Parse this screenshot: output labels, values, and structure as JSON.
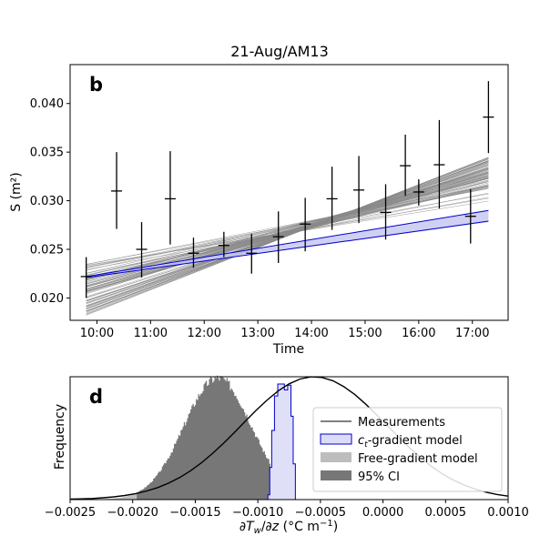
{
  "figure_title": "21-Aug/AM13",
  "chart_data": [
    {
      "panel_label": "b",
      "type": "scatter",
      "title": "21-Aug/AM13",
      "xlabel": "Time",
      "ylabel": "S (m²)",
      "xlim": [
        "09:30",
        "17:40"
      ],
      "ylim": [
        0.0177,
        0.044
      ],
      "x_ticks": [
        "10:00",
        "11:00",
        "12:00",
        "13:00",
        "14:00",
        "15:00",
        "16:00",
        "17:00"
      ],
      "y_ticks": [
        "0.020",
        "0.025",
        "0.030",
        "0.035",
        "0.040"
      ],
      "grid": false,
      "legend": "none",
      "measurements": {
        "x": [
          "09:48",
          "10:22",
          "10:50",
          "11:22",
          "11:48",
          "12:22",
          "12:53",
          "13:23",
          "13:53",
          "14:23",
          "14:53",
          "15:23",
          "15:45",
          "16:00",
          "16:23",
          "16:58",
          "17:18"
        ],
        "y": [
          0.0222,
          0.031,
          0.025,
          0.0302,
          0.0246,
          0.0254,
          0.0246,
          0.0263,
          0.0276,
          0.0302,
          0.0311,
          0.0288,
          0.0336,
          0.0309,
          0.0337,
          0.0284,
          0.0386
        ],
        "y_low": [
          0.02,
          0.0271,
          0.0221,
          0.0255,
          0.0231,
          0.0242,
          0.0225,
          0.0236,
          0.0248,
          0.027,
          0.0277,
          0.026,
          0.0305,
          0.0295,
          0.0292,
          0.0256,
          0.0349
        ],
        "y_high": [
          0.0242,
          0.035,
          0.0278,
          0.0351,
          0.0262,
          0.0268,
          0.0266,
          0.0289,
          0.0303,
          0.0335,
          0.0346,
          0.0317,
          0.0368,
          0.0322,
          0.0383,
          0.0312,
          0.0423
        ]
      },
      "ensemble": {
        "start_x": "09:48",
        "end_x": "17:18",
        "count": 90,
        "start_range": [
          0.0182,
          0.0237
        ],
        "end_range": [
          0.0296,
          0.0345
        ]
      },
      "band": {
        "x": [
          "09:48",
          "17:18"
        ],
        "lower": [
          0.0221,
          0.0278
        ],
        "upper": [
          0.0222,
          0.029
        ],
        "mean": [
          0.0221,
          0.0279
        ],
        "color": "#0000cc",
        "fill": "#c8c8f2"
      }
    },
    {
      "panel_label": "d",
      "type": "area",
      "xlabel": "∂Tw/∂z (°C m⁻¹)",
      "ylabel": "Frequency",
      "xlim": [
        -0.0025,
        0.001
      ],
      "x_ticks": [
        "−0.0025",
        "−0.0020",
        "−0.0015",
        "−0.0010",
        "−0.0005",
        "0.0000",
        "0.0005",
        "0.0010"
      ],
      "grid": false,
      "legend": "top-right",
      "series": [
        {
          "name": "Measurements",
          "kind": "line",
          "center": -0.00055,
          "width": 0.00058,
          "peak": 1.0,
          "color": "#000000"
        },
        {
          "name": "c_t-gradient model",
          "kind": "step-outline",
          "range": [
            -0.00092,
            -0.0007
          ],
          "peak": 0.97,
          "color": "#0000cc",
          "fill": "#dcdcf7"
        },
        {
          "name": "Free-gradient model",
          "kind": "histogram",
          "center": -0.00132,
          "width": 0.00027,
          "range": [
            -0.0023,
            -0.0009
          ],
          "peak": 1.0,
          "color": "#bdbdbd"
        },
        {
          "name": "95% CI",
          "kind": "histogram",
          "range": [
            -0.00197,
            -0.0009
          ],
          "color": "#777777"
        }
      ],
      "legend_entries": [
        {
          "label": "Measurements",
          "kind": "line",
          "color": "#000000"
        },
        {
          "label_main": "c",
          "label_sub": "t",
          "label_rest": "-gradient model",
          "kind": "patch",
          "color": "#0000cc",
          "fill": "#dcdcf7"
        },
        {
          "label": "Free-gradient model",
          "kind": "patch",
          "color": "#bdbdbd",
          "fill": "#bdbdbd"
        },
        {
          "label": "95% CI",
          "kind": "patch",
          "color": "#777777",
          "fill": "#777777"
        }
      ]
    }
  ]
}
